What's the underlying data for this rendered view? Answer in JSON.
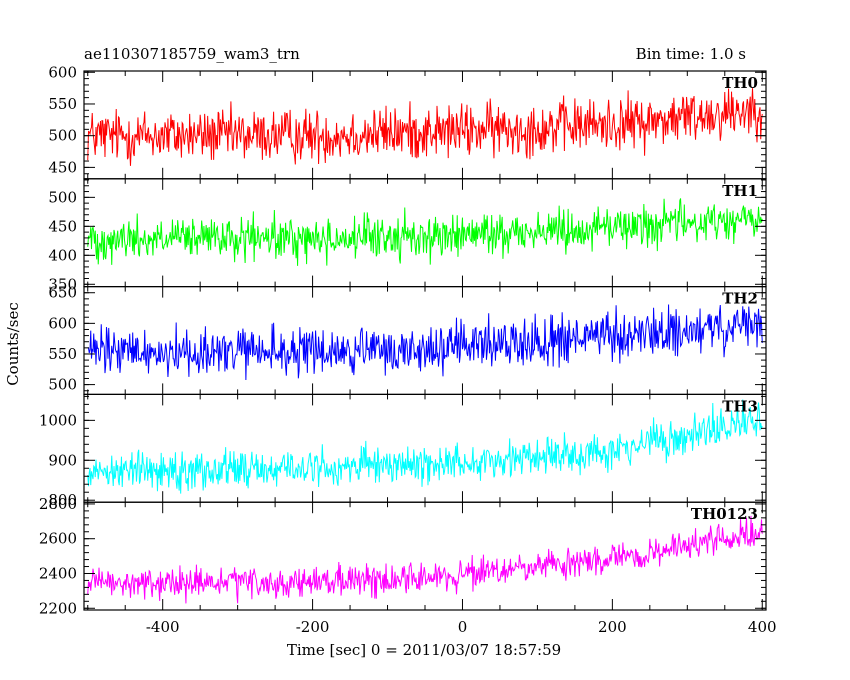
{
  "chart_data": {
    "type": "line",
    "title": "ae110307185759_wam3_trn",
    "subtitle": "Bin time: 1.0 s",
    "xlabel": "Time [sec] 0 = 2011/03/07 18:57:59",
    "ylabel": "Counts/sec",
    "xlim": [
      -505,
      405
    ],
    "x_range": [
      -500,
      400
    ],
    "x_step": 1,
    "xticks": [
      -400,
      -200,
      0,
      200,
      400
    ],
    "grid": false,
    "panels": [
      {
        "name": "TH0",
        "color": "#ff0000",
        "ylim": [
          432,
          602
        ],
        "yticks": [
          450,
          500,
          550,
          600
        ],
        "trend": [
          [
            -500,
            500
          ],
          [
            -200,
            500
          ],
          [
            100,
            512
          ],
          [
            250,
            522
          ],
          [
            400,
            545
          ]
        ],
        "noise": 30
      },
      {
        "name": "TH1",
        "color": "#00ff00",
        "ylim": [
          346,
          532
        ],
        "yticks": [
          350,
          400,
          450,
          500
        ],
        "trend": [
          [
            -500,
            428
          ],
          [
            -200,
            428
          ],
          [
            0,
            434
          ],
          [
            200,
            450
          ],
          [
            400,
            462
          ]
        ],
        "noise": 26
      },
      {
        "name": "TH2",
        "color": "#0000ff",
        "ylim": [
          484,
          660
        ],
        "yticks": [
          500,
          550,
          600,
          650
        ],
        "trend": [
          [
            -500,
            553
          ],
          [
            -100,
            553
          ],
          [
            50,
            568
          ],
          [
            250,
            582
          ],
          [
            400,
            595
          ]
        ],
        "noise": 28
      },
      {
        "name": "TH3",
        "color": "#00ffff",
        "ylim": [
          795,
          1065
        ],
        "yticks": [
          800,
          900,
          1000
        ],
        "trend": [
          [
            -500,
            875
          ],
          [
            -200,
            880
          ],
          [
            0,
            895
          ],
          [
            200,
            925
          ],
          [
            300,
            960
          ],
          [
            400,
            1005
          ]
        ],
        "noise": 34
      },
      {
        "name": "TH0123",
        "color": "#ff00ff",
        "ylim": [
          2190,
          2810
        ],
        "yticks": [
          2200,
          2400,
          2600,
          2800
        ],
        "trend": [
          [
            -500,
            2340
          ],
          [
            -200,
            2345
          ],
          [
            0,
            2390
          ],
          [
            200,
            2480
          ],
          [
            300,
            2555
          ],
          [
            400,
            2640
          ]
        ],
        "noise": 62
      }
    ]
  }
}
